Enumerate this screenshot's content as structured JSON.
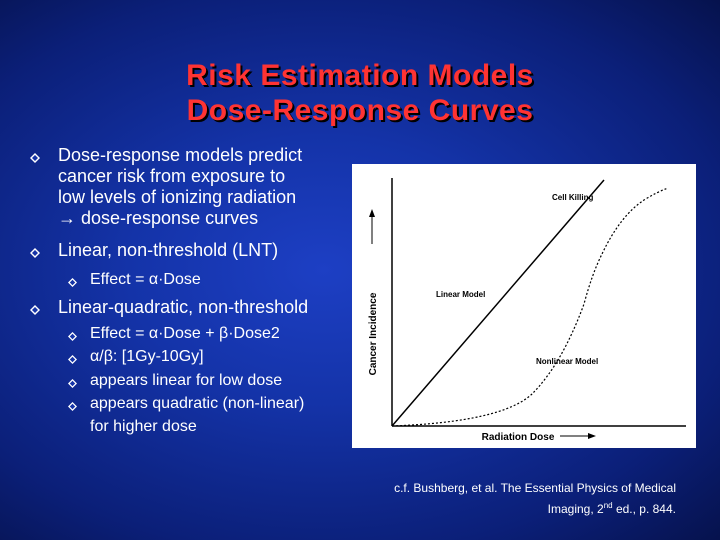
{
  "title": {
    "line1": "Risk Estimation Models",
    "line2": "Dose-Response Curves"
  },
  "bullets": [
    {
      "level": 1,
      "lines": [
        "Dose-response models predict",
        "cancer risk from exposure to",
        "low levels of ionizing radiation",
        "→ dose-response curves"
      ]
    },
    {
      "level": 1,
      "lines": [
        "Linear, non-threshold (LNT)"
      ]
    },
    {
      "level": 2,
      "lines": [
        "Effect = α·Dose"
      ]
    },
    {
      "level": 1,
      "lines": [
        "Linear-quadratic, non-threshold"
      ]
    },
    {
      "level": 2,
      "lines": [
        "Effect = α·Dose + β·Dose2"
      ]
    },
    {
      "level": 2,
      "lines": [
        "α/β: [1Gy-10Gy]"
      ]
    },
    {
      "level": 2,
      "lines": [
        "appears linear for low dose"
      ]
    },
    {
      "level": 2,
      "lines": [
        "appears quadratic (non-linear)",
        "for higher dose"
      ]
    }
  ],
  "figure": {
    "y_axis_label": "Cancer Incidence",
    "x_axis_label": "Radiation Dose",
    "label_cell_killing": "Cell Killing",
    "label_linear": "Linear Model",
    "label_nonlinear": "Nonlinear Model"
  },
  "caption": {
    "line1": "c.f. Bushberg, et al. The Essential Physics of Medical",
    "line2_prefix": "Imaging, 2",
    "line2_sup": "nd",
    "line2_suffix": " ed., p. 844."
  },
  "colors": {
    "title": "#ff3333",
    "bullet_mark": "#ffffff",
    "background": "#1433a8"
  }
}
